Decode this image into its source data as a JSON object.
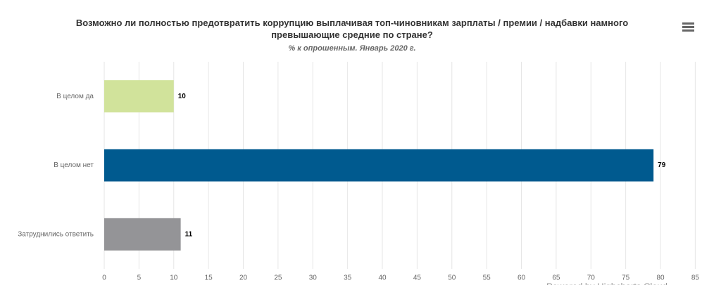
{
  "chart_data": {
    "type": "bar",
    "orientation": "horizontal",
    "title": "Возможно ли полностью предотвратить коррупцию выплачивая топ-чиновникам зарплаты / премии / надбавки намного превышающие средние по стране?",
    "subtitle": "% к опрошенным. Январь 2020 г.",
    "categories": [
      "В целом да",
      "В целом нет",
      "Затруднились ответить"
    ],
    "values": [
      10,
      79,
      11
    ],
    "colors": [
      "#d1e39b",
      "#005a8f",
      "#949497"
    ],
    "xlim": [
      0,
      85
    ],
    "xticks": [
      0,
      5,
      10,
      15,
      20,
      25,
      30,
      35,
      40,
      45,
      50,
      55,
      60,
      65,
      70,
      75,
      80,
      85
    ],
    "grid": true,
    "credits": "Powered by Highcharts Cloud"
  }
}
